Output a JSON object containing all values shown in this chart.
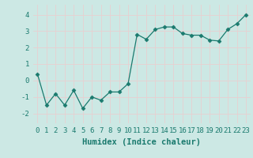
{
  "x": [
    0,
    1,
    2,
    3,
    4,
    5,
    6,
    7,
    8,
    9,
    10,
    11,
    12,
    13,
    14,
    15,
    16,
    17,
    18,
    19,
    20,
    21,
    22,
    23
  ],
  "y": [
    0.4,
    -1.5,
    -0.8,
    -1.5,
    -0.6,
    -1.7,
    -1.0,
    -1.2,
    -0.7,
    -0.7,
    -0.2,
    2.8,
    2.5,
    3.1,
    3.25,
    3.25,
    2.85,
    2.75,
    2.75,
    2.45,
    2.4,
    3.1,
    3.45,
    4.0
  ],
  "line_color": "#1a7a6e",
  "marker": "D",
  "marker_size": 2.5,
  "bg_color": "#cce8e4",
  "grid_color": "#e8d0d0",
  "xlabel": "Humidex (Indice chaleur)",
  "xlim": [
    -0.5,
    23.5
  ],
  "ylim": [
    -2.6,
    4.6
  ],
  "yticks": [
    -2,
    -1,
    0,
    1,
    2,
    3,
    4
  ],
  "xticks": [
    0,
    1,
    2,
    3,
    4,
    5,
    6,
    7,
    8,
    9,
    10,
    11,
    12,
    13,
    14,
    15,
    16,
    17,
    18,
    19,
    20,
    21,
    22,
    23
  ],
  "tick_label_fontsize": 6.5,
  "xlabel_fontsize": 7.5
}
